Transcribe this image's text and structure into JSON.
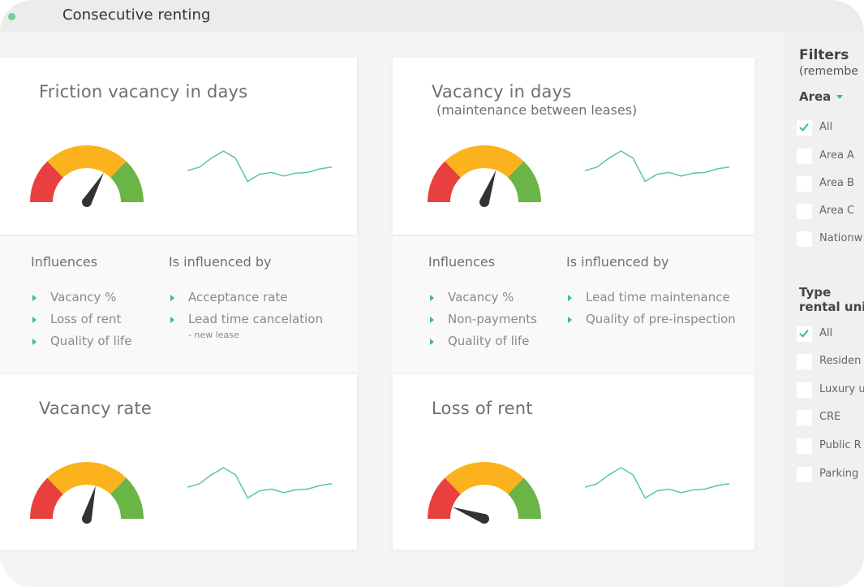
{
  "app": {
    "title": "Consecutive renting"
  },
  "cards": [
    {
      "title": "Friction vacancy in days",
      "subtitle": "",
      "gauge_angle_deg": -60
    },
    {
      "title": "Vacancy in days",
      "subtitle": "(maintenance between leases)",
      "gauge_angle_deg": -70
    },
    {
      "title": "Vacancy rate",
      "subtitle": "",
      "gauge_angle_deg": -75
    },
    {
      "title": "Loss of rent",
      "subtitle": "",
      "gauge_angle_deg": -160
    }
  ],
  "info_panels": [
    {
      "influences_label": "Influences",
      "influenced_by_label": "Is influenced by",
      "influences": [
        "Vacancy %",
        "Loss of rent",
        "Quality of life"
      ],
      "influenced_by": [
        "Acceptance rate",
        "Lead time cancelation"
      ],
      "note": "- new lease"
    },
    {
      "influences_label": "Influences",
      "influenced_by_label": "Is influenced by",
      "influences": [
        "Vacancy %",
        "Non-payments",
        "Quality of life"
      ],
      "influenced_by": [
        "Lead time maintenance",
        "Quality of pre-inspection"
      ],
      "note": ""
    }
  ],
  "filters": {
    "title": "Filters",
    "subtitle": "(remembe",
    "area_label": "Area",
    "area_options": [
      {
        "label": "All",
        "checked": true
      },
      {
        "label": "Area A",
        "checked": false
      },
      {
        "label": "Area B",
        "checked": false
      },
      {
        "label": "Area C",
        "checked": false
      },
      {
        "label": "Nationw",
        "checked": false
      }
    ],
    "type_label_line1": "Type",
    "type_label_line2": "rental unit",
    "type_options": [
      {
        "label": "All",
        "checked": true
      },
      {
        "label": "Residen",
        "checked": false
      },
      {
        "label": "Luxury u",
        "checked": false
      },
      {
        "label": "CRE",
        "checked": false
      },
      {
        "label": "Public R",
        "checked": false
      },
      {
        "label": "Parking",
        "checked": false
      }
    ]
  },
  "colors": {
    "accent": "#3dbb8f",
    "gauge_red": "#e8403f",
    "gauge_yellow": "#fbb21d",
    "gauge_green": "#6ab545",
    "needle": "#333333",
    "sparkline": "#5ac8a0"
  },
  "sparkline_values": [
    0.45,
    0.55,
    0.8,
    1.0,
    0.8,
    0.15,
    0.35,
    0.4,
    0.3,
    0.38,
    0.4,
    0.5,
    0.55
  ]
}
